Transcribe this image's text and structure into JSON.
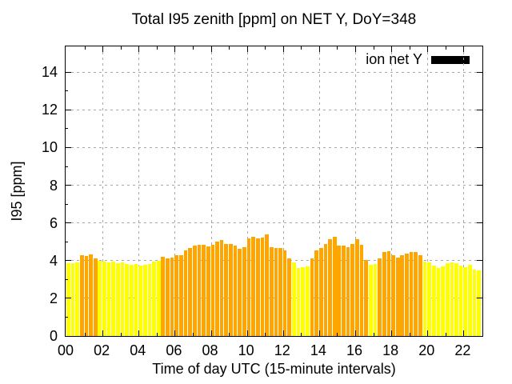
{
  "title": "Total I95 zenith [ppm] on NET Y, DoY=348",
  "axis": {
    "x_label": "Time of day UTC (15-minute intervals)",
    "y_label": "I95 [ppm]",
    "x_ticks": [
      "00",
      "02",
      "04",
      "06",
      "08",
      "10",
      "12",
      "14",
      "16",
      "18",
      "20",
      "22"
    ],
    "y_ticks": [
      "0",
      "2",
      "4",
      "6",
      "8",
      "10",
      "12",
      "14"
    ]
  },
  "legend": {
    "label": "ion net Y"
  },
  "colors": {
    "bar_above_4": "#ffa500",
    "bar_below_4": "#ffff00",
    "grid": "#a8a8a8",
    "axis": "#000000",
    "legend_swatch": "#000000",
    "background": "#ffffff"
  },
  "chart_data": {
    "type": "bar",
    "title": "Total I95 zenith [ppm] on NET Y, DoY=348",
    "xlabel": "Time of day UTC (15-minute intervals)",
    "ylabel": "I95 [ppm]",
    "series_name": "ion net Y",
    "interval_minutes": 15,
    "ylim": [
      0,
      15.37
    ],
    "grid": true,
    "legend_position": "top-right inside",
    "color_rule": "orange (#ffa500) if value >= 4 ppm else yellow (#ffff00)",
    "categories": [
      "00:00",
      "00:15",
      "00:30",
      "00:45",
      "01:00",
      "01:15",
      "01:30",
      "01:45",
      "02:00",
      "02:15",
      "02:30",
      "02:45",
      "03:00",
      "03:15",
      "03:30",
      "03:45",
      "04:00",
      "04:15",
      "04:30",
      "04:45",
      "05:00",
      "05:15",
      "05:30",
      "05:45",
      "06:00",
      "06:15",
      "06:30",
      "06:45",
      "07:00",
      "07:15",
      "07:30",
      "07:45",
      "08:00",
      "08:15",
      "08:30",
      "08:45",
      "09:00",
      "09:15",
      "09:30",
      "09:45",
      "10:00",
      "10:15",
      "10:30",
      "10:45",
      "11:00",
      "11:15",
      "11:30",
      "11:45",
      "12:00",
      "12:15",
      "12:30",
      "12:45",
      "13:00",
      "13:15",
      "13:30",
      "13:45",
      "14:00",
      "14:15",
      "14:30",
      "14:45",
      "15:00",
      "15:15",
      "15:30",
      "15:45",
      "16:00",
      "16:15",
      "16:30",
      "16:45",
      "17:00",
      "17:15",
      "17:30",
      "17:45",
      "18:00",
      "18:15",
      "18:30",
      "18:45",
      "19:00",
      "19:15",
      "19:30",
      "19:45",
      "20:00",
      "20:15",
      "20:30",
      "20:45",
      "21:00",
      "21:15",
      "21:30",
      "21:45",
      "22:00",
      "22:15",
      "22:30",
      "22:45"
    ],
    "values": [
      3.87,
      3.87,
      3.9,
      4.31,
      4.24,
      4.35,
      4.12,
      3.99,
      3.93,
      3.9,
      3.93,
      3.87,
      3.91,
      3.84,
      3.77,
      3.84,
      3.74,
      3.79,
      3.84,
      3.96,
      3.99,
      4.19,
      4.1,
      4.17,
      4.3,
      4.3,
      4.53,
      4.68,
      4.79,
      4.83,
      4.83,
      4.76,
      4.86,
      5.01,
      5.11,
      4.9,
      4.87,
      4.79,
      4.62,
      4.73,
      5.18,
      5.27,
      5.18,
      5.21,
      5.4,
      4.73,
      4.65,
      4.68,
      4.55,
      4.11,
      3.92,
      3.63,
      3.66,
      3.7,
      4.13,
      4.55,
      4.66,
      4.9,
      5.15,
      5.27,
      4.79,
      4.79,
      4.7,
      4.9,
      5.15,
      4.82,
      4.05,
      3.8,
      3.82,
      4.13,
      4.48,
      4.52,
      4.27,
      4.17,
      4.3,
      4.37,
      4.45,
      4.48,
      4.27,
      3.94,
      3.89,
      3.73,
      3.63,
      3.7,
      3.85,
      3.89,
      3.85,
      3.75,
      3.66,
      3.77,
      3.52,
      3.49
    ]
  }
}
